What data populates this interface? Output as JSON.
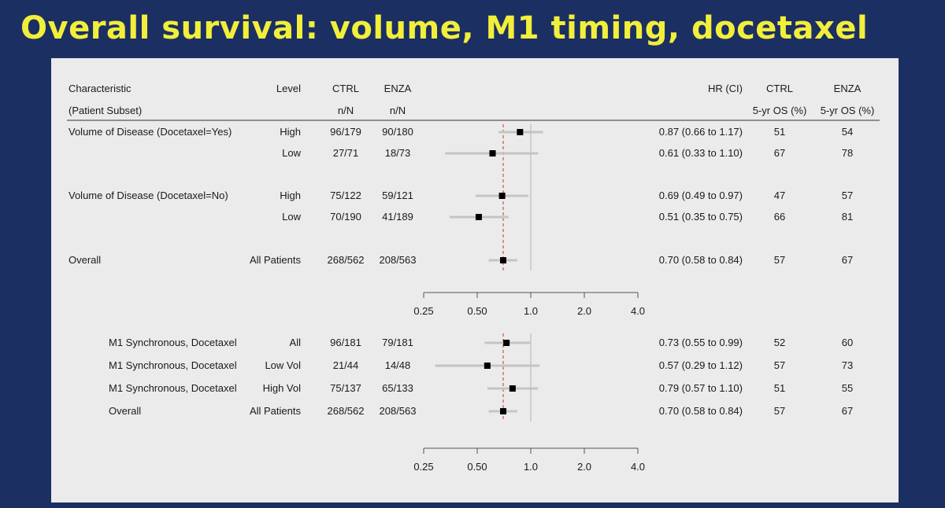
{
  "title": "Overall survival: volume, M1 timing, docetaxel",
  "header": {
    "row1": {
      "characteristic": "Characteristic",
      "level": "Level",
      "ctrl": "CTRL",
      "enza": "ENZA",
      "hr": "HR (CI)",
      "ctrl_os": "CTRL",
      "enza_os": "ENZA"
    },
    "row2": {
      "characteristic": "(Patient Subset)",
      "ctrl": "n/N",
      "enza": "n/N",
      "ctrl_os": "5-yr OS (%)",
      "enza_os": "5-yr OS (%)"
    }
  },
  "colors": {
    "background": "#1b2f63",
    "title": "#f2ef3a",
    "panel": "#ecebeb",
    "reference_line": "#c0392b",
    "ci_bar": "#c4c4c4",
    "point": "#000000"
  },
  "chart_data": [
    {
      "type": "forest",
      "x_scale": "log",
      "xlim": [
        0.25,
        4.0
      ],
      "x_ticks": [
        "0.25",
        "0.50",
        "1.0",
        "2.0",
        "4.0"
      ],
      "null_line": 1.0,
      "reference_line": 0.7,
      "rows": [
        {
          "characteristic": "Volume of Disease (Docetaxel=Yes)",
          "level": "High",
          "ctrl_n": "96/179",
          "enza_n": "90/180",
          "hr": 0.87,
          "lo": 0.66,
          "hi": 1.17,
          "hr_text": "0.87 (0.66 to 1.17)",
          "ctrl_os": "51",
          "enza_os": "54"
        },
        {
          "characteristic": "",
          "level": "Low",
          "ctrl_n": "27/71",
          "enza_n": "18/73",
          "hr": 0.61,
          "lo": 0.33,
          "hi": 1.1,
          "hr_text": "0.61 (0.33 to 1.10)",
          "ctrl_os": "67",
          "enza_os": "78"
        },
        {
          "characteristic": "Volume of Disease (Docetaxel=No)",
          "level": "High",
          "ctrl_n": "75/122",
          "enza_n": "59/121",
          "hr": 0.69,
          "lo": 0.49,
          "hi": 0.97,
          "hr_text": "0.69 (0.49 to 0.97)",
          "ctrl_os": "47",
          "enza_os": "57"
        },
        {
          "characteristic": "",
          "level": "Low",
          "ctrl_n": "70/190",
          "enza_n": "41/189",
          "hr": 0.51,
          "lo": 0.35,
          "hi": 0.75,
          "hr_text": "0.51 (0.35 to 0.75)",
          "ctrl_os": "66",
          "enza_os": "81"
        },
        {
          "characteristic": "Overall",
          "level": "All Patients",
          "ctrl_n": "268/562",
          "enza_n": "208/563",
          "hr": 0.7,
          "lo": 0.58,
          "hi": 0.84,
          "hr_text": "0.70 (0.58 to 0.84)",
          "ctrl_os": "57",
          "enza_os": "67"
        }
      ]
    },
    {
      "type": "forest",
      "x_scale": "log",
      "xlim": [
        0.25,
        4.0
      ],
      "x_ticks": [
        "0.25",
        "0.50",
        "1.0",
        "2.0",
        "4.0"
      ],
      "null_line": 1.0,
      "reference_line": 0.7,
      "rows": [
        {
          "characteristic": "M1 Synchronous, Docetaxel",
          "level": "All",
          "ctrl_n": "96/181",
          "enza_n": "79/181",
          "hr": 0.73,
          "lo": 0.55,
          "hi": 0.99,
          "hr_text": "0.73 (0.55 to 0.99)",
          "ctrl_os": "52",
          "enza_os": "60"
        },
        {
          "characteristic": "M1 Synchronous, Docetaxel",
          "level": "Low Vol",
          "ctrl_n": "21/44",
          "enza_n": "14/48",
          "hr": 0.57,
          "lo": 0.29,
          "hi": 1.12,
          "hr_text": "0.57 (0.29 to 1.12)",
          "ctrl_os": "57",
          "enza_os": "73"
        },
        {
          "characteristic": "M1 Synchronous, Docetaxel",
          "level": "High Vol",
          "ctrl_n": "75/137",
          "enza_n": "65/133",
          "hr": 0.79,
          "lo": 0.57,
          "hi": 1.1,
          "hr_text": "0.79 (0.57 to 1.10)",
          "ctrl_os": "51",
          "enza_os": "55"
        },
        {
          "characteristic": "Overall",
          "level": "All Patients",
          "ctrl_n": "268/562",
          "enza_n": "208/563",
          "hr": 0.7,
          "lo": 0.58,
          "hi": 0.84,
          "hr_text": "0.70 (0.58 to 0.84)",
          "ctrl_os": "57",
          "enza_os": "67"
        }
      ]
    }
  ]
}
